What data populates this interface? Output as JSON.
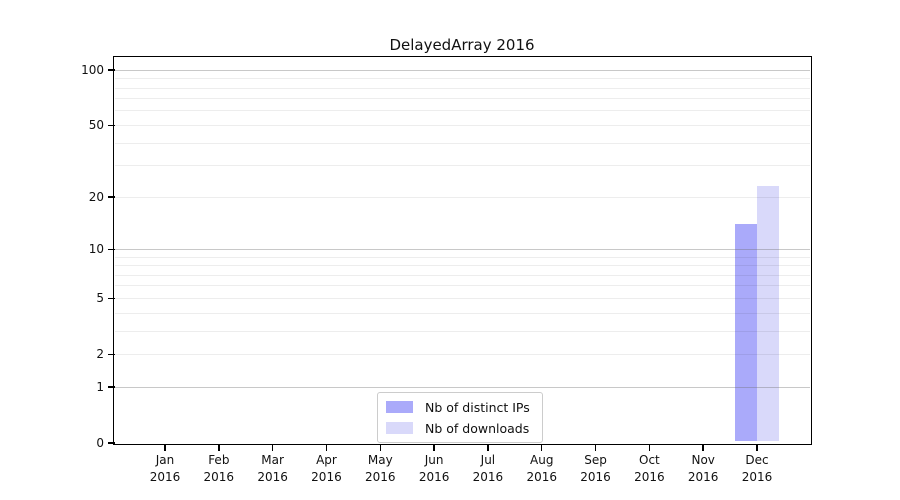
{
  "chart_data": {
    "type": "bar",
    "title": "DelayedArray 2016",
    "categories": [
      "Jan 2016",
      "Feb 2016",
      "Mar 2016",
      "Apr 2016",
      "May 2016",
      "Jun 2016",
      "Jul 2016",
      "Aug 2016",
      "Sep 2016",
      "Oct 2016",
      "Nov 2016",
      "Dec 2016"
    ],
    "series": [
      {
        "name": "Nb of distinct IPs",
        "color": "#aaaafa",
        "values": [
          0,
          0,
          0,
          0,
          0,
          0,
          0,
          0,
          0,
          0,
          0,
          14
        ]
      },
      {
        "name": "Nb of downloads",
        "color": "#d9d9fa",
        "values": [
          0,
          0,
          0,
          0,
          0,
          0,
          0,
          0,
          0,
          0,
          0,
          23
        ]
      }
    ],
    "xlabel": "",
    "ylabel": "",
    "yscale": "log10(1+x)",
    "ylim": [
      0,
      118
    ],
    "yticks": [
      0,
      1,
      2,
      5,
      10,
      20,
      50,
      100
    ],
    "grid": "on",
    "grid_major_values": [
      1,
      10,
      100
    ],
    "grid_minor_values": [
      2,
      3,
      4,
      5,
      6,
      7,
      8,
      9,
      20,
      30,
      40,
      50,
      60,
      70,
      80,
      90
    ],
    "legend_position": "bottom-center"
  },
  "colors": {
    "background": "#ffffff",
    "axis": "#000000",
    "text": "#111111",
    "grid_major": "rgba(110,110,110,0.38)",
    "grid_minor": "rgba(0,0,0,0.07)",
    "legend_border": "#cccccc",
    "bar_distinct_ips": "#aaaafa",
    "bar_downloads": "#d9d9fa"
  }
}
